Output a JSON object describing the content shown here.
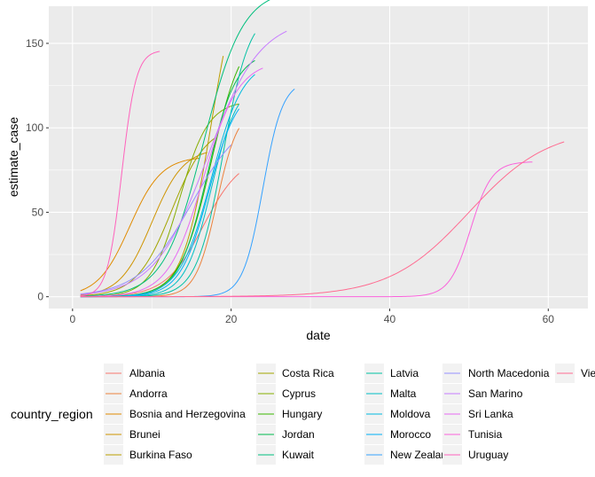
{
  "chart_data": {
    "type": "line",
    "title": "",
    "xlabel": "date",
    "ylabel": "estimate_case",
    "xlim": [
      -3,
      65
    ],
    "ylim": [
      -7,
      172
    ],
    "xticks": [
      {
        "value": 0,
        "label": "0"
      },
      {
        "value": 20,
        "label": "20"
      },
      {
        "value": 40,
        "label": "40"
      },
      {
        "value": 60,
        "label": "60"
      }
    ],
    "yticks": [
      {
        "value": 0,
        "label": "0"
      },
      {
        "value": 50,
        "label": "50"
      },
      {
        "value": 100,
        "label": "100"
      },
      {
        "value": 150,
        "label": "150"
      }
    ],
    "grid": true,
    "legend_title": "country_region",
    "legend_position": "bottom",
    "series": [
      {
        "name": "Albania",
        "color": "#F8766D",
        "K": 84,
        "r": 0.42,
        "t0": 16.5,
        "xmax": 21
      },
      {
        "name": "Andorra",
        "color": "#EC823C",
        "K": 112,
        "r": 0.75,
        "t0": 18.2,
        "xmax": 21
      },
      {
        "name": "Bosnia and Herzegovina",
        "color": "#E08B00",
        "K": 83,
        "r": 0.5,
        "t0": 7.2,
        "xmax": 16
      },
      {
        "name": "Brunei",
        "color": "#CF9400",
        "K": 88,
        "r": 0.5,
        "t0": 10,
        "xmax": 17
      },
      {
        "name": "Burkina Faso",
        "color": "#BB9D00",
        "K": 205,
        "r": 0.55,
        "t0": 17.5,
        "xmax": 19
      },
      {
        "name": "Costa Rica",
        "color": "#A3A500",
        "K": 102,
        "r": 0.45,
        "t0": 12.5,
        "xmax": 18
      },
      {
        "name": "Cyprus",
        "color": "#85AD00",
        "K": 116,
        "r": 0.55,
        "t0": 13.5,
        "xmax": 21
      },
      {
        "name": "Hungary",
        "color": "#39B600",
        "K": 160,
        "r": 0.5,
        "t0": 17.5,
        "xmax": 21
      },
      {
        "name": "Jordan",
        "color": "#00BB4E",
        "K": 145,
        "r": 0.55,
        "t0": 17,
        "xmax": 23
      },
      {
        "name": "Kuwait",
        "color": "#00BF7D",
        "K": 182,
        "r": 0.4,
        "t0": 16.5,
        "xmax": 30
      },
      {
        "name": "Latvia",
        "color": "#00C1A3",
        "K": 170,
        "r": 0.6,
        "t0": 19,
        "xmax": 23
      },
      {
        "name": "Malta",
        "color": "#00BFC4",
        "K": 128,
        "r": 0.6,
        "t0": 17.5,
        "xmax": 21
      },
      {
        "name": "Moldova",
        "color": "#00BAE0",
        "K": 140,
        "r": 0.5,
        "t0": 17.5,
        "xmax": 23
      },
      {
        "name": "Morocco",
        "color": "#00B0F6",
        "K": 125,
        "r": 0.55,
        "t0": 17.2,
        "xmax": 21
      },
      {
        "name": "New Zealand",
        "color": "#35A2FF",
        "K": 128,
        "r": 0.8,
        "t0": 24,
        "xmax": 28
      },
      {
        "name": "North Macedonia",
        "color": "#9590FF",
        "K": 110,
        "r": 0.3,
        "t0": 15,
        "xmax": 20
      },
      {
        "name": "San Marino",
        "color": "#C77CFF",
        "K": 165,
        "r": 0.3,
        "t0": 17,
        "xmax": 27
      },
      {
        "name": "Sri Lanka",
        "color": "#E76BF3",
        "K": 140,
        "r": 0.45,
        "t0": 16.5,
        "xmax": 24
      },
      {
        "name": "Tunisia",
        "color": "#FA62DB",
        "K": 80,
        "r": 0.75,
        "t0": 50.2,
        "xmax": 58
      },
      {
        "name": "Uruguay",
        "color": "#FF62BC",
        "K": 146,
        "r": 1.1,
        "t0": 6.2,
        "xmax": 11
      },
      {
        "name": "Vietnam",
        "color": "#FF6C91",
        "K": 100,
        "r": 0.2,
        "t0": 50,
        "xmax": 62
      }
    ]
  }
}
